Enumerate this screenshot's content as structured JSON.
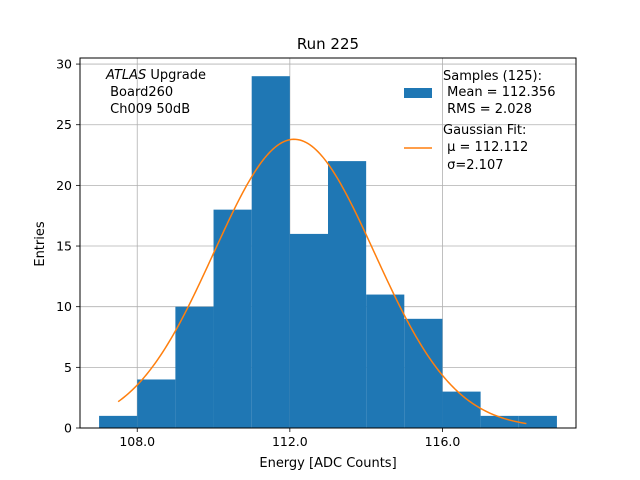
{
  "chart_data": {
    "type": "bar",
    "title": "Run 225",
    "xlabel": "Energy [ADC Counts]",
    "ylabel": "Entries",
    "xlim": [
      106.5,
      119.5
    ],
    "ylim": [
      0,
      30.5
    ],
    "xticks": [
      108.0,
      112.0,
      116.0
    ],
    "xtick_labels": [
      "108.0",
      "112.0",
      "116.0"
    ],
    "yticks": [
      0,
      5,
      10,
      15,
      20,
      25,
      30
    ],
    "ytick_labels": [
      "0",
      "5",
      "10",
      "15",
      "20",
      "25",
      "30"
    ],
    "grid": true,
    "histogram": {
      "bin_edges": [
        107,
        108,
        109,
        110,
        111,
        112,
        113,
        114,
        115,
        116,
        117,
        118,
        119
      ],
      "counts": [
        1,
        4,
        10,
        18,
        29,
        16,
        22,
        11,
        9,
        3,
        1,
        1
      ],
      "color": "#1f77b4"
    },
    "fit": {
      "mu": 112.112,
      "sigma": 2.107,
      "amplitude": 23.8,
      "x_range": [
        107.5,
        118.2
      ],
      "color": "#ff7f0e"
    },
    "annotation": {
      "italic_part": "ATLAS",
      "line1_rest": " Upgrade",
      "line2": " Board260",
      "line3": " Ch009 50dB"
    },
    "legend": {
      "position": "top-right",
      "samples": [
        "Samples (125):",
        " Mean = 112.356",
        " RMS = 2.028"
      ],
      "fit": [
        "Gaussian Fit:",
        " μ = 112.112",
        " σ=2.107"
      ]
    }
  }
}
